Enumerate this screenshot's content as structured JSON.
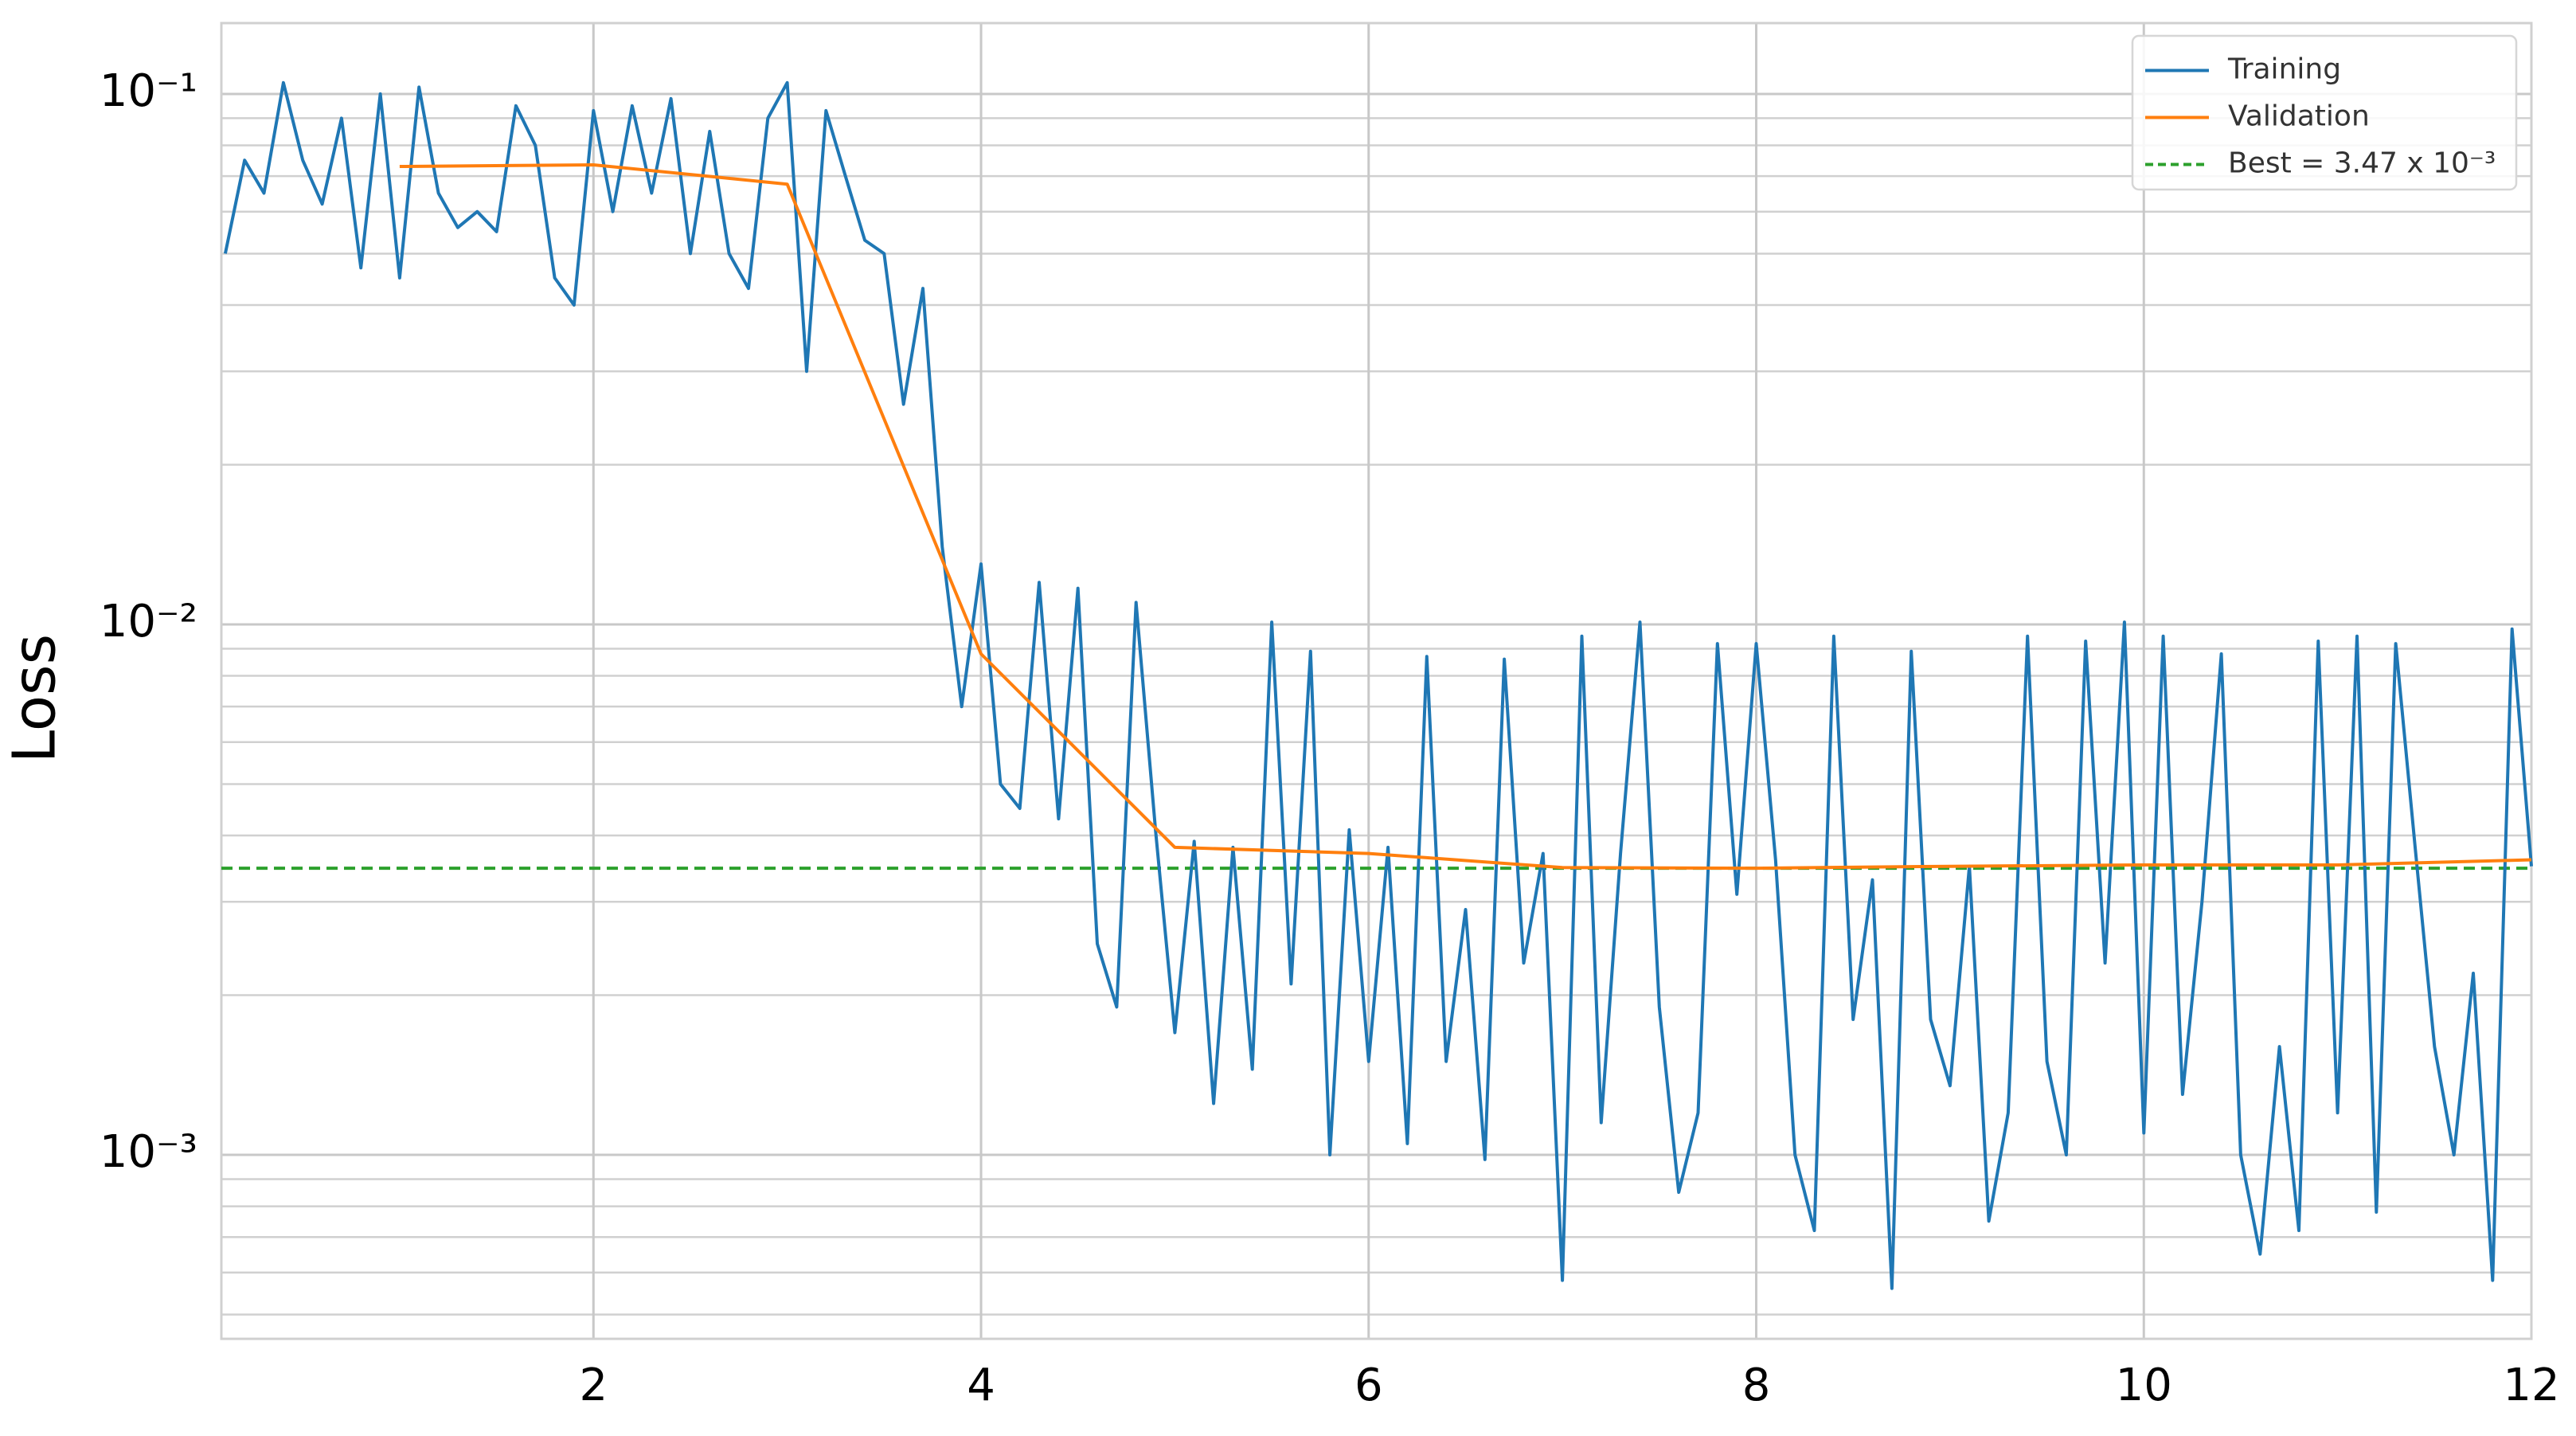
{
  "chart_data": {
    "type": "line",
    "y_label": "Loss",
    "log_y": true,
    "grid": true,
    "legend": "upper right",
    "xlim": [
      0.08,
      12
    ],
    "xticks": [
      2,
      4,
      6,
      8,
      10,
      12
    ],
    "ylim": [
      0.00045,
      0.136
    ],
    "yticks": [
      {
        "value": 0.001,
        "label": "10⁻³"
      },
      {
        "value": 0.01,
        "label": "10⁻²"
      },
      {
        "value": 0.1,
        "label": "10⁻¹"
      }
    ],
    "yminorticks": [
      0.0005,
      0.0006,
      0.0007,
      0.0008,
      0.0009,
      0.002,
      0.003,
      0.004,
      0.005,
      0.006,
      0.007,
      0.008,
      0.009,
      0.02,
      0.03,
      0.04,
      0.05,
      0.06,
      0.07,
      0.08,
      0.09
    ],
    "series": [
      {
        "name": "Training",
        "color": "#1f77b4",
        "x": [
          0.1,
          0.2,
          0.3,
          0.4,
          0.5,
          0.6,
          0.7,
          0.8,
          0.9,
          1,
          1.1,
          1.2,
          1.3,
          1.4,
          1.5,
          1.6,
          1.7,
          1.8,
          1.9,
          2,
          2.1,
          2.2,
          2.3,
          2.4,
          2.5,
          2.6,
          2.7,
          2.8,
          2.9,
          3,
          3.1,
          3.2,
          3.3,
          3.4,
          3.5,
          3.6,
          3.7,
          3.8,
          3.9,
          4,
          4.1,
          4.2,
          4.3,
          4.4,
          4.5,
          4.6,
          4.7,
          4.8,
          4.9,
          5,
          5.1,
          5.2,
          5.3,
          5.4,
          5.5,
          5.6,
          5.7,
          5.8,
          5.9,
          6,
          6.1,
          6.2,
          6.3,
          6.4,
          6.5,
          6.6,
          6.7,
          6.8,
          6.9,
          7,
          7.1,
          7.2,
          7.3,
          7.4,
          7.5,
          7.6,
          7.7,
          7.8,
          7.9,
          8,
          8.1,
          8.2,
          8.3,
          8.4,
          8.5,
          8.6,
          8.7,
          8.8,
          8.9,
          9,
          9.1,
          9.2,
          9.3,
          9.4,
          9.5,
          9.6,
          9.7,
          9.8,
          9.9,
          10,
          10.1,
          10.2,
          10.3,
          10.4,
          10.5,
          10.6,
          10.7,
          10.8,
          10.9,
          11,
          11.1,
          11.2,
          11.3,
          11.4,
          11.5,
          11.6,
          11.7,
          11.8,
          11.9,
          12
        ],
        "values": [
          0.05,
          0.075,
          0.065,
          0.105,
          0.075,
          0.062,
          0.09,
          0.047,
          0.1,
          0.045,
          0.103,
          0.065,
          0.056,
          0.06,
          0.055,
          0.095,
          0.08,
          0.045,
          0.04,
          0.093,
          0.06,
          0.095,
          0.065,
          0.098,
          0.05,
          0.085,
          0.05,
          0.043,
          0.09,
          0.105,
          0.03,
          0.093,
          0.07,
          0.053,
          0.05,
          0.026,
          0.043,
          0.014,
          0.007,
          0.013,
          0.005,
          0.0045,
          0.012,
          0.0043,
          0.0117,
          0.0025,
          0.0019,
          0.011,
          0.0041,
          0.0017,
          0.0039,
          0.00125,
          0.0038,
          0.00145,
          0.0101,
          0.0021,
          0.0089,
          0.001,
          0.0041,
          0.0015,
          0.0038,
          0.00105,
          0.0087,
          0.0015,
          0.0029,
          0.00098,
          0.0086,
          0.0023,
          0.0037,
          0.00058,
          0.0095,
          0.00115,
          0.0037,
          0.0101,
          0.0019,
          0.00085,
          0.0012,
          0.0092,
          0.0031,
          0.0092,
          0.0036,
          0.001,
          0.00072,
          0.0095,
          0.0018,
          0.0033,
          0.00056,
          0.0089,
          0.0018,
          0.00135,
          0.0035,
          0.00075,
          0.0012,
          0.0095,
          0.0015,
          0.001,
          0.0093,
          0.0023,
          0.0101,
          0.0011,
          0.0095,
          0.0013,
          0.003,
          0.0088,
          0.001,
          0.00065,
          0.0016,
          0.00072,
          0.0093,
          0.0012,
          0.0095,
          0.00078,
          0.0092,
          0.0038,
          0.0016,
          0.001,
          0.0022,
          0.00058,
          0.0098,
          0.0035
        ]
      },
      {
        "name": "Validation",
        "color": "#ff7f0e",
        "x": [
          1,
          2,
          3,
          4,
          5,
          6,
          7,
          8,
          9,
          10,
          11,
          12
        ],
        "values": [
          0.073,
          0.0735,
          0.0676,
          0.0088,
          0.0038,
          0.0037,
          0.00348,
          0.00347,
          0.0035,
          0.00352,
          0.00352,
          0.0036
        ]
      }
    ],
    "hlines": [
      {
        "name": "Best = 3.47 x 10⁻³",
        "value": 0.00347,
        "color": "#2ca02c"
      }
    ]
  }
}
